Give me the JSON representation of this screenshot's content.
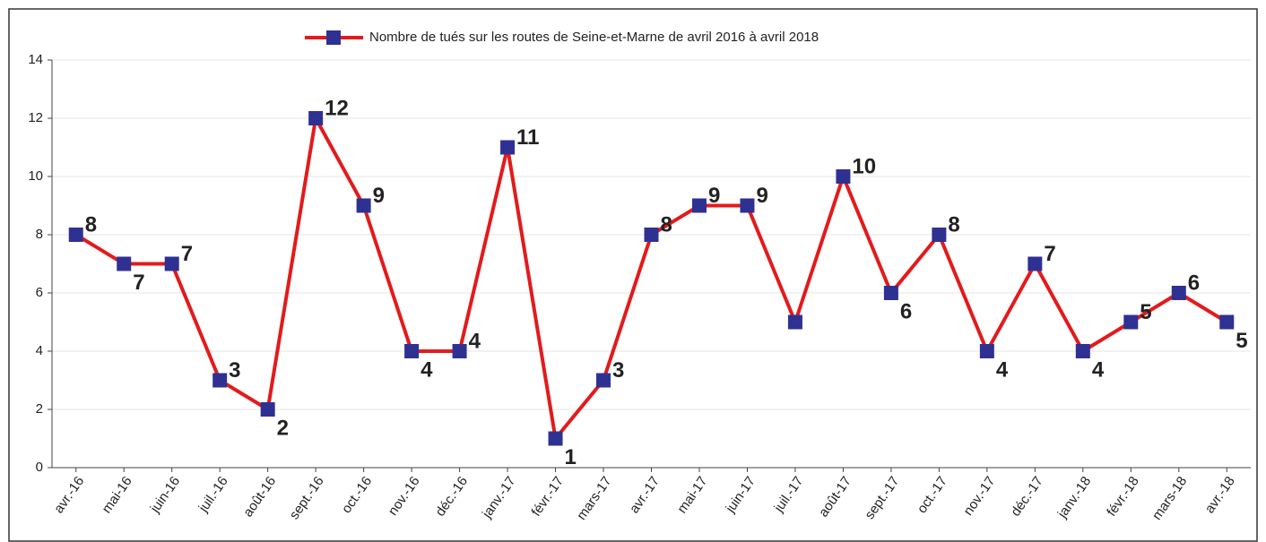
{
  "chart_data": {
    "type": "line",
    "categories": [
      "avr.-16",
      "mai-16",
      "juin-16",
      "juil.-16",
      "août-16",
      "sept.-16",
      "oct.-16",
      "nov.-16",
      "déc.-16",
      "janv.-17",
      "févr.-17",
      "mars-17",
      "avr.-17",
      "mai-17",
      "juin-17",
      "juil.-17",
      "août-17",
      "sept.-17",
      "oct.-17",
      "nov.-17",
      "déc.-17",
      "janv.-18",
      "févr.-18",
      "mars-18",
      "avr.-18"
    ],
    "series": [
      {
        "name": "Nombre de tués sur les routes de Seine-et-Marne de avril 2016 à avril 2018",
        "color": "#e31a1c",
        "marker_color": "#2e3192",
        "values": [
          8,
          7,
          7,
          3,
          2,
          12,
          9,
          4,
          4,
          11,
          1,
          3,
          8,
          9,
          9,
          5,
          10,
          6,
          8,
          4,
          7,
          4,
          5,
          6,
          5
        ],
        "value_labels": [
          "8",
          "7",
          "7",
          "3",
          "2",
          "12",
          "9",
          "4",
          "4",
          "11",
          "1",
          "3",
          "8",
          "9",
          "9",
          null,
          "10",
          "6",
          "8",
          "4",
          "7",
          "4",
          "5",
          "6",
          "5"
        ]
      }
    ],
    "ylim": [
      0,
      14
    ],
    "yticks": [
      0,
      2,
      4,
      6,
      8,
      10,
      12,
      14
    ],
    "grid": true,
    "legend": "top"
  }
}
